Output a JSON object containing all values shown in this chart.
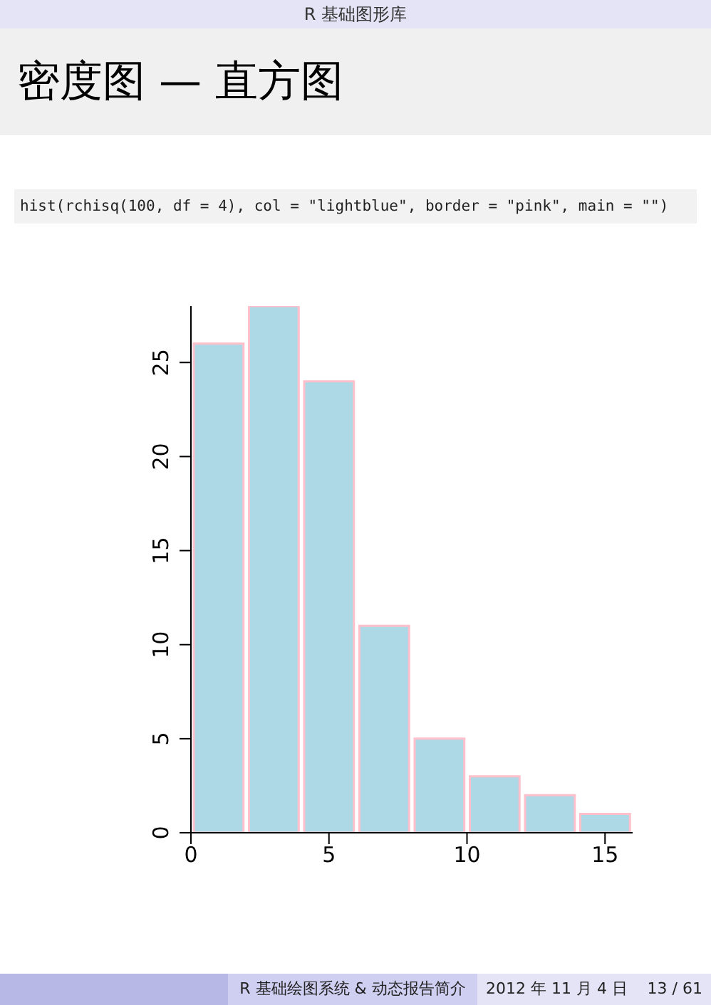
{
  "chart_data": {
    "type": "histogram",
    "title": "密度图 — 直方图",
    "annotations": [
      "R 基础图形库",
      "hist(rchisq(100, df = 4), col = \"lightblue\", border = \"pink\", main = \"\")",
      "R 基础绘图系统 & 动态报告简介",
      "2012 年 11 月 4 日",
      "13 / 61"
    ],
    "bins": [
      0,
      2,
      4,
      6,
      8,
      10,
      12,
      14,
      16
    ],
    "values": [
      26,
      28,
      24,
      11,
      5,
      3,
      2,
      1
    ],
    "color": "#add8e6",
    "xlim": [
      0,
      16
    ],
    "xticks": [
      0,
      5,
      10,
      15
    ],
    "ylim": [
      0,
      28
    ],
    "yticks": [
      0,
      5,
      10,
      15,
      20,
      25
    ],
    "grid": false
  }
}
